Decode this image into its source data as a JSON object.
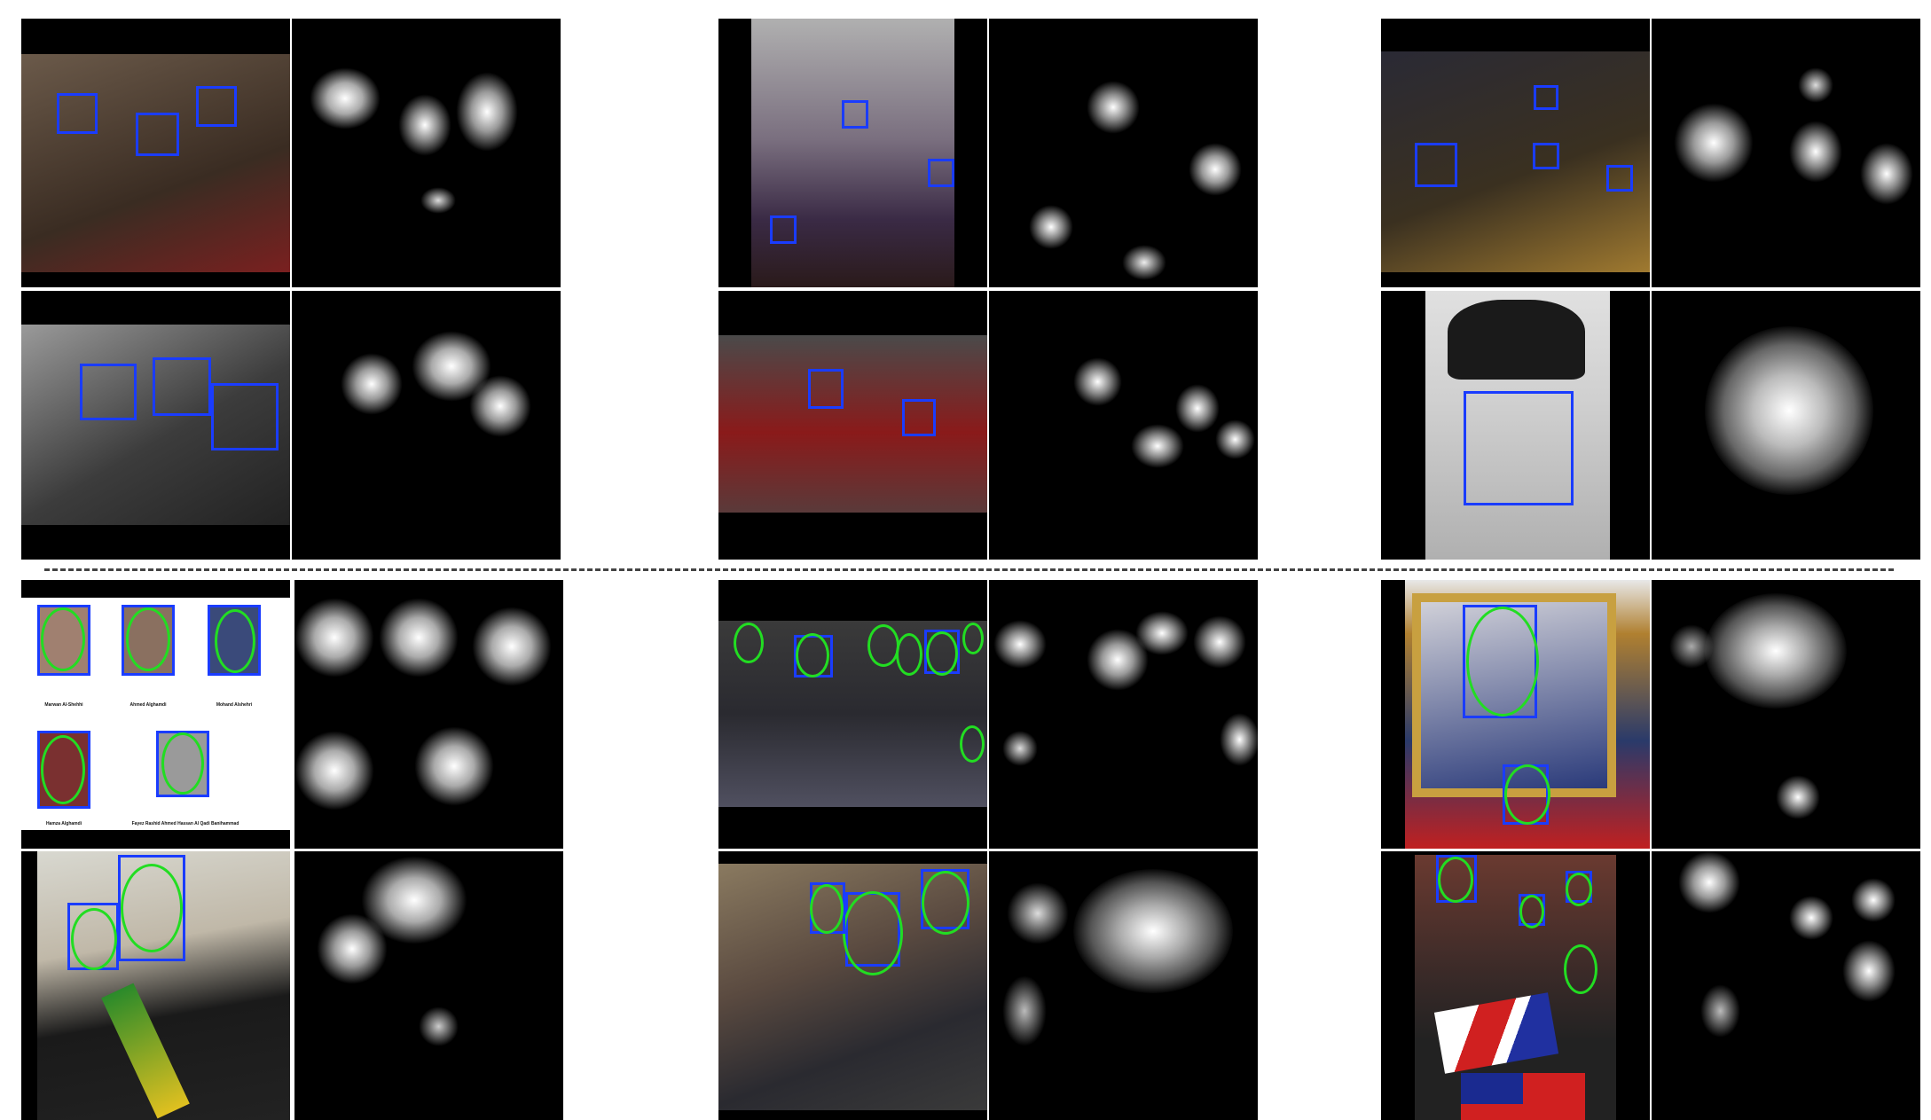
{
  "figure": {
    "background": "#ffffff",
    "box_color": "#1a3cff",
    "ellipse_color": "#22dd22",
    "divider_style": "dashed"
  },
  "mugshot_captions": [
    "Marwan Al-Shehhi",
    "Ahmed Alghamdi",
    "Mohand Alshehri",
    "Hamza Alghamdi",
    "Fayez Rashid Ahmed Hassan Al Qadi Banihammad"
  ]
}
